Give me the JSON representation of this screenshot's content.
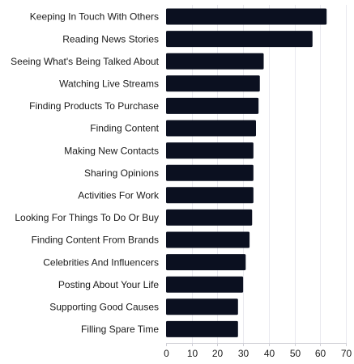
{
  "chart_data": {
    "type": "bar",
    "orientation": "horizontal",
    "title": "",
    "xlabel": "",
    "ylabel": "",
    "categories": [
      "Keeping In Touch With Others",
      "Reading News Stories",
      "Seeing What's Being Talked About",
      "Watching Live Streams",
      "Finding Products To Purchase",
      "Finding Content",
      "Making New Contacts",
      "Sharing Opinions",
      "Activities For Work",
      "Looking For Things To Do Or Buy",
      "Finding Content From Brands",
      "Celebrities And Influencers",
      "Posting About Your Life",
      "Supporting Good Causes",
      "Filling Spare Time"
    ],
    "values": [
      62.5,
      57,
      38,
      36.5,
      36,
      35,
      34,
      34,
      34,
      33.5,
      32.5,
      31,
      30,
      28,
      28
    ],
    "xlim": [
      0,
      70
    ],
    "xticks": [
      "0",
      "10",
      "20",
      "30",
      "40",
      "50",
      "60",
      "70"
    ],
    "grid": "vertical",
    "bar_color": "#0b1020"
  }
}
